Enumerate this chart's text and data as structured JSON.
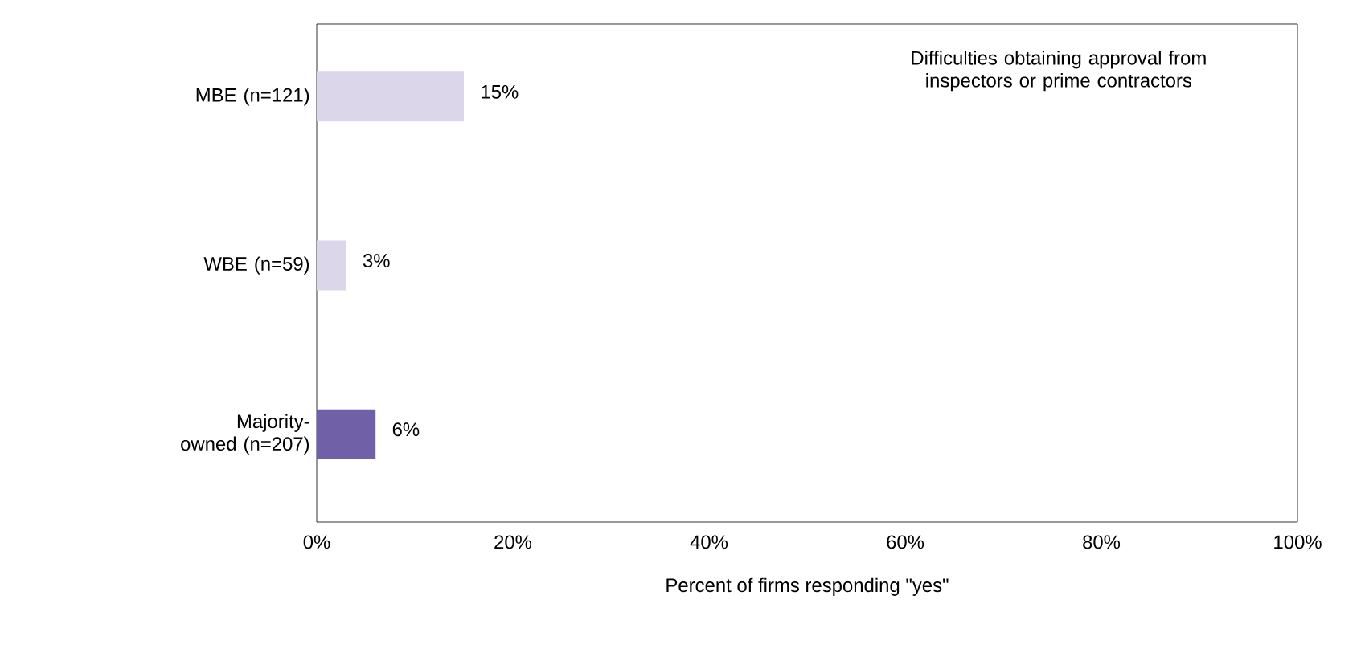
{
  "chart_data": {
    "type": "bar",
    "orientation": "horizontal",
    "categories": [
      "MBE (n=121)",
      "WBE (n=59)",
      "Majority-owned (n=207)"
    ],
    "values": [
      15,
      3,
      6
    ],
    "colors": [
      "#dcd6ea",
      "#dcd6ea",
      "#7060a8"
    ],
    "value_labels": [
      "15%",
      "3%",
      "6%"
    ],
    "xlim": [
      0,
      100
    ],
    "xticks": [
      {
        "value": 0,
        "label": "0%"
      },
      {
        "value": 20,
        "label": "20%"
      },
      {
        "value": 40,
        "label": "40%"
      },
      {
        "value": 60,
        "label": "60%"
      },
      {
        "value": 80,
        "label": "80%"
      },
      {
        "value": 100,
        "label": "100%"
      }
    ],
    "xlabel": "Percent of firms responding \"yes\"",
    "annotations": [
      "Difficulties obtaining approval from inspectors or prime contractors"
    ]
  }
}
